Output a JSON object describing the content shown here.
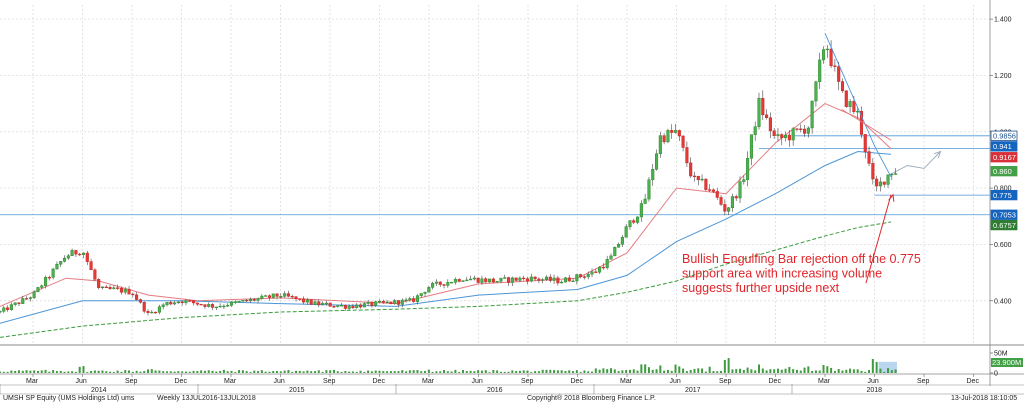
{
  "chart_data": {
    "type": "candlestick",
    "security": "UMSH SP Equity (UMS Holdings Ltd) ums",
    "frequency": "Weekly 13JUL2016-13JUL2018",
    "copyright": "Copyright® 2018 Bloomberg Finance L.P.",
    "timestamp": "13-Jul-2018 18:10:05",
    "x_axis": {
      "months": [
        {
          "label": "Mar",
          "year": 2014,
          "month": 3
        },
        {
          "label": "Jun",
          "year": 2014,
          "month": 6
        },
        {
          "label": "Sep",
          "year": 2014,
          "month": 9
        },
        {
          "label": "Dec",
          "year": 2014,
          "month": 12
        },
        {
          "label": "Mar",
          "year": 2015,
          "month": 3
        },
        {
          "label": "Jun",
          "year": 2015,
          "month": 6
        },
        {
          "label": "Sep",
          "year": 2015,
          "month": 9
        },
        {
          "label": "Dec",
          "year": 2015,
          "month": 12
        },
        {
          "label": "Mar",
          "year": 2016,
          "month": 3
        },
        {
          "label": "Jun",
          "year": 2016,
          "month": 6
        },
        {
          "label": "Sep",
          "year": 2016,
          "month": 9
        },
        {
          "label": "Dec",
          "year": 2016,
          "month": 12
        },
        {
          "label": "Mar",
          "year": 2017,
          "month": 3
        },
        {
          "label": "Jun",
          "year": 2017,
          "month": 6
        },
        {
          "label": "Sep",
          "year": 2017,
          "month": 9
        },
        {
          "label": "Dec",
          "year": 2017,
          "month": 12
        },
        {
          "label": "Mar",
          "year": 2018,
          "month": 3
        },
        {
          "label": "Jun",
          "year": 2018,
          "month": 6
        },
        {
          "label": "Sep",
          "year": 2018,
          "month": 9
        },
        {
          "label": "Dec",
          "year": 2018,
          "month": 12
        }
      ],
      "years": [
        {
          "label": "2014",
          "center_month": "2014-07"
        },
        {
          "label": "2015",
          "center_month": "2015-07"
        },
        {
          "label": "2016",
          "center_month": "2016-07"
        },
        {
          "label": "2017",
          "center_month": "2017-07"
        },
        {
          "label": "2018",
          "center_month": "2018-06"
        }
      ],
      "range": [
        "2014-01",
        "2018-12"
      ]
    },
    "y_axis": {
      "ticks": [
        "0.400",
        "0.600",
        "0.800",
        "1.000",
        "1.200",
        "1.400"
      ],
      "tick_values": [
        0.4,
        0.6,
        0.8,
        1.0,
        1.2,
        1.4
      ],
      "range": [
        0.25,
        1.45
      ]
    },
    "volume_axis": {
      "ticks": [
        "50M",
        "0"
      ],
      "tick_values": [
        50,
        0
      ],
      "range": [
        0,
        60
      ]
    },
    "price_path": [
      [
        "2014-01",
        0.36
      ],
      [
        "2014-03",
        0.42
      ],
      [
        "2014-05",
        0.56
      ],
      [
        "2014-06",
        0.58
      ],
      [
        "2014-07",
        0.44
      ],
      [
        "2014-08",
        0.44
      ],
      [
        "2014-09",
        0.43
      ],
      [
        "2014-10",
        0.35
      ],
      [
        "2014-11",
        0.39
      ],
      [
        "2014-12",
        0.4
      ],
      [
        "2015-02",
        0.38
      ],
      [
        "2015-04",
        0.4
      ],
      [
        "2015-06",
        0.42
      ],
      [
        "2015-08",
        0.39
      ],
      [
        "2015-10",
        0.38
      ],
      [
        "2015-12",
        0.39
      ],
      [
        "2016-02",
        0.4
      ],
      [
        "2016-03",
        0.45
      ],
      [
        "2016-05",
        0.48
      ],
      [
        "2016-07",
        0.47
      ],
      [
        "2016-09",
        0.48
      ],
      [
        "2016-11",
        0.47
      ],
      [
        "2017-01",
        0.5
      ],
      [
        "2017-02",
        0.55
      ],
      [
        "2017-03",
        0.66
      ],
      [
        "2017-04",
        0.74
      ],
      [
        "2017-05",
        0.98
      ],
      [
        "2017-06",
        1.0
      ],
      [
        "2017-07",
        0.83
      ],
      [
        "2017-08",
        0.8
      ],
      [
        "2017-09",
        0.72
      ],
      [
        "2017-10",
        0.82
      ],
      [
        "2017-11",
        1.1
      ],
      [
        "2017-12",
        0.97
      ],
      [
        "2018-01",
        0.99
      ],
      [
        "2018-02",
        1.02
      ],
      [
        "2018-03",
        1.33
      ],
      [
        "2018-04",
        1.13
      ],
      [
        "2018-05",
        1.06
      ],
      [
        "2018-06",
        0.79
      ],
      [
        "2018-07",
        0.86
      ]
    ],
    "series": [
      {
        "name": "",
        "style": "solid",
        "color": "#e47b82",
        "points": [
          [
            "2014-01",
            0.38
          ],
          [
            "2014-05",
            0.48
          ],
          [
            "2014-07",
            0.47
          ],
          [
            "2014-10",
            0.42
          ],
          [
            "2015-01",
            0.4
          ],
          [
            "2015-06",
            0.41
          ],
          [
            "2016-01",
            0.39
          ],
          [
            "2016-06",
            0.46
          ],
          [
            "2016-12",
            0.48
          ],
          [
            "2017-03",
            0.57
          ],
          [
            "2017-06",
            0.8
          ],
          [
            "2017-09",
            0.78
          ],
          [
            "2017-12",
            0.96
          ],
          [
            "2018-03",
            1.1
          ],
          [
            "2018-05",
            1.05
          ],
          [
            "2018-07",
            0.94
          ]
        ]
      },
      {
        "name": "",
        "style": "solid",
        "color": "#4c96d7",
        "points": [
          [
            "2014-01",
            0.32
          ],
          [
            "2014-06",
            0.4
          ],
          [
            "2014-12",
            0.4
          ],
          [
            "2015-06",
            0.39
          ],
          [
            "2016-01",
            0.38
          ],
          [
            "2016-06",
            0.42
          ],
          [
            "2016-12",
            0.44
          ],
          [
            "2017-03",
            0.49
          ],
          [
            "2017-06",
            0.61
          ],
          [
            "2017-09",
            0.69
          ],
          [
            "2017-12",
            0.78
          ],
          [
            "2018-03",
            0.88
          ],
          [
            "2018-05",
            0.93
          ],
          [
            "2018-07",
            0.92
          ]
        ]
      },
      {
        "name": "",
        "style": "dashed",
        "color": "#3c9a3c",
        "points": [
          [
            "2014-01",
            0.27
          ],
          [
            "2014-06",
            0.31
          ],
          [
            "2014-12",
            0.34
          ],
          [
            "2015-06",
            0.36
          ],
          [
            "2016-01",
            0.37
          ],
          [
            "2016-06",
            0.38
          ],
          [
            "2016-12",
            0.4
          ],
          [
            "2017-03",
            0.43
          ],
          [
            "2017-06",
            0.47
          ],
          [
            "2017-09",
            0.53
          ],
          [
            "2017-12",
            0.58
          ],
          [
            "2018-03",
            0.63
          ],
          [
            "2018-05",
            0.66
          ],
          [
            "2018-07",
            0.68
          ]
        ]
      }
    ],
    "horizontal_levels": [
      {
        "value": 0.9856,
        "label": "0.9856",
        "from": "2018-01",
        "badge_bg": "#ffffff",
        "badge_fg": "#1a4f8c",
        "badge_border": "#1a4f8c"
      },
      {
        "value": 0.941,
        "label": "0.941",
        "from": "2017-11",
        "badge_bg": "#1565c0",
        "badge_fg": "#ffffff"
      },
      {
        "value": 0.9167,
        "label": "0.9167",
        "from": null,
        "badge_bg": "#d9303a",
        "badge_fg": "#ffffff"
      },
      {
        "value": 0.86,
        "label": "0.860",
        "from": null,
        "badge_bg": "#43a047",
        "badge_fg": "#ffffff"
      },
      {
        "value": 0.775,
        "label": "0.775",
        "from": "2018-06",
        "badge_bg": "#1565c0",
        "badge_fg": "#ffffff"
      },
      {
        "value": 0.7053,
        "label": "0.7053",
        "from": "2014-01",
        "badge_bg": "#1565c0",
        "badge_fg": "#ffffff"
      },
      {
        "value": 0.6757,
        "label": "0.6757",
        "from": null,
        "badge_bg": "#2e7d32",
        "badge_fg": "#ffffff"
      }
    ],
    "trendlines": [
      {
        "color": "#4c96d7",
        "points": [
          [
            "2018-03",
            1.35
          ],
          [
            "2018-06",
            0.95
          ],
          [
            "2018-07",
            0.84
          ]
        ]
      },
      {
        "color": "#e47b82",
        "points": [
          [
            "2018-04",
            1.08
          ],
          [
            "2018-07",
            0.97
          ]
        ]
      }
    ],
    "projection": {
      "color": "#9aa9bb",
      "points": [
        [
          "2018-07",
          0.85
        ],
        [
          "2018-08",
          0.88
        ],
        [
          "2018-09",
          0.87
        ],
        [
          "2018-10",
          0.93
        ]
      ]
    },
    "volume_highlight": {
      "from": "2018-06",
      "to": "2018-07",
      "label": "23.900M"
    },
    "annotation": {
      "lines": [
        "Bullish Engulfing Bar rejection off the 0.775",
        "support area with increasing volume",
        "suggests further upside next"
      ],
      "color": "#e0262b",
      "arrow_target": [
        "2018-07",
        0.79
      ]
    },
    "volume_spikes": [
      [
        "2014-06",
        18
      ],
      [
        "2014-10",
        10
      ],
      [
        "2016-03",
        9
      ],
      [
        "2017-04",
        17
      ],
      [
        "2017-05",
        20
      ],
      [
        "2017-06",
        16
      ],
      [
        "2017-09",
        32
      ],
      [
        "2017-11",
        17
      ],
      [
        "2018-02",
        15
      ],
      [
        "2018-03",
        14
      ],
      [
        "2018-06",
        30
      ]
    ]
  }
}
